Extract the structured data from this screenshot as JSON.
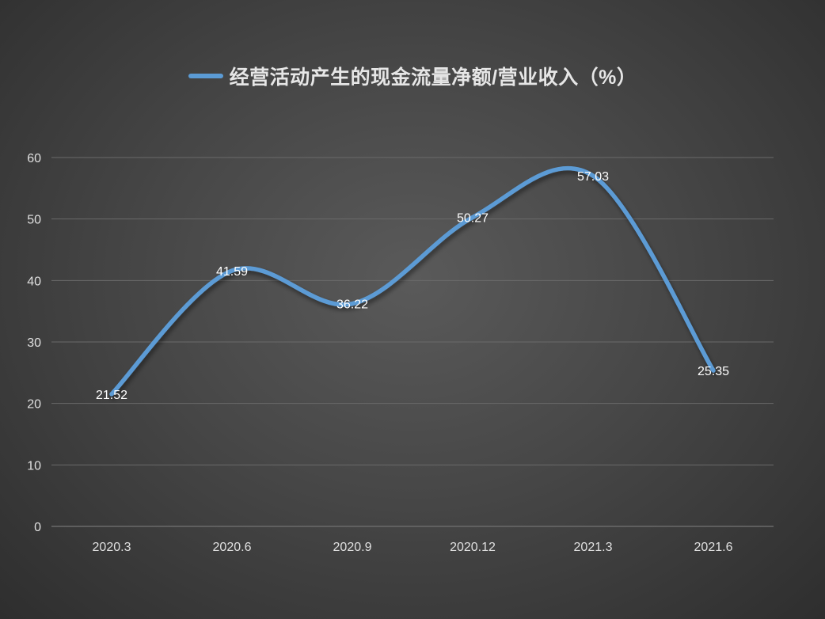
{
  "legend": {
    "label": "经营活动产生的现金流量净额/营业收入（%）"
  },
  "colors": {
    "series": "#5b9bd5",
    "grid": "#6a6a6a",
    "axis_text": "#e0e0e0",
    "label_text": "#ffffff"
  },
  "chart_data": {
    "type": "line",
    "title": "",
    "xlabel": "",
    "ylabel": "",
    "categories": [
      "2020.3",
      "2020.6",
      "2020.9",
      "2020.12",
      "2021.3",
      "2021.6"
    ],
    "series": [
      {
        "name": "经营活动产生的现金流量净额/营业收入（%）",
        "values": [
          21.52,
          41.59,
          36.22,
          50.27,
          57.03,
          25.35
        ],
        "labels": [
          "21.52",
          "41.59",
          "36.22",
          "50.27",
          "57.03",
          "25.35"
        ]
      }
    ],
    "ylim": [
      0,
      60
    ],
    "yticks": [
      "0",
      "10",
      "20",
      "30",
      "40",
      "50",
      "60"
    ],
    "smooth": true,
    "grid": true,
    "legend_position": "top"
  }
}
